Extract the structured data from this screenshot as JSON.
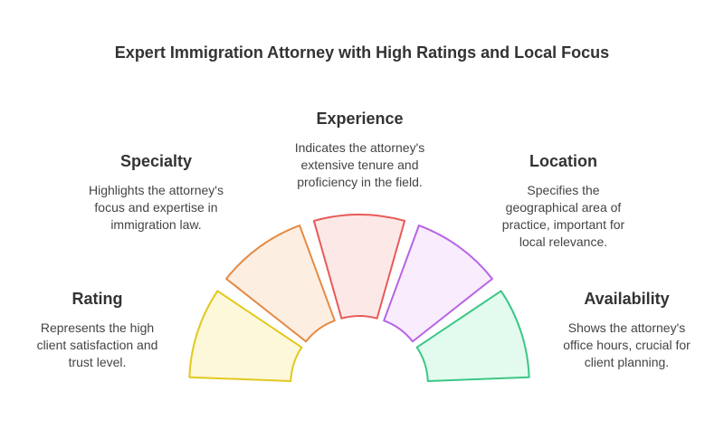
{
  "title": "Expert Immigration Attorney with High Ratings and Local Focus",
  "segments": [
    {
      "heading": "Rating",
      "text": "Represents the high client satisfaction and trust level.",
      "stroke": "#e2c81e",
      "fill": "#fdf8d9"
    },
    {
      "heading": "Specialty",
      "text": "Highlights the attorney's focus and expertise in immigration law.",
      "stroke": "#e58a43",
      "fill": "#fdeee2"
    },
    {
      "heading": "Experience",
      "text": "Indicates the attorney's extensive tenure and proficiency in the field.",
      "stroke": "#e85a57",
      "fill": "#fde8e8"
    },
    {
      "heading": "Location",
      "text": "Specifies the geographical area of practice, important for local relevance.",
      "stroke": "#b763e6",
      "fill": "#f8ecfd"
    },
    {
      "heading": "Availability",
      "text": "Shows the attorney's office hours, crucial for client planning.",
      "stroke": "#3cc785",
      "fill": "#e2fbee"
    }
  ]
}
